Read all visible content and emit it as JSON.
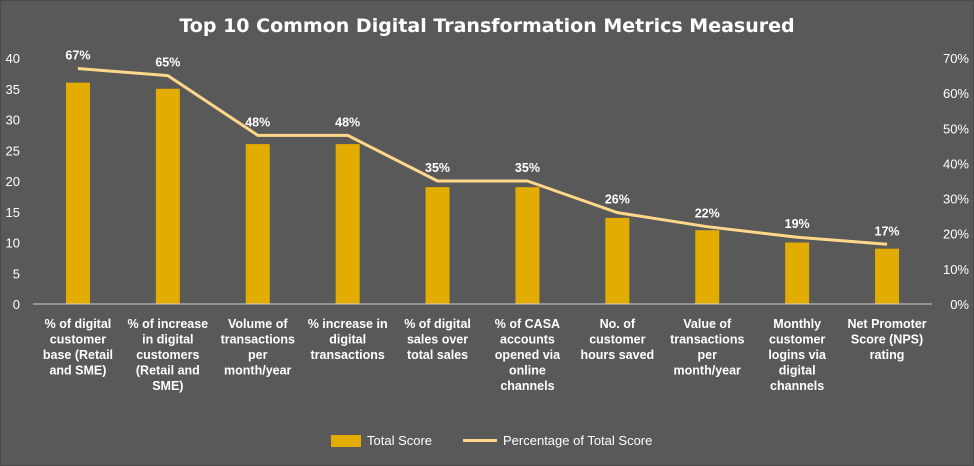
{
  "chart_data": {
    "type": "bar",
    "title": "Top 10 Common Digital Transformation Metrics Measured",
    "categories": [
      [
        "% of digital",
        "customer",
        "base (Retail",
        "and SME)"
      ],
      [
        "% of increase",
        "in digital",
        "customers",
        "(Retail and",
        "SME)"
      ],
      [
        "Volume of",
        "transactions",
        "per",
        "month/year"
      ],
      [
        "% increase in",
        "digital",
        "transactions"
      ],
      [
        "% of digital",
        "sales over",
        "total sales"
      ],
      [
        "% of CASA",
        "accounts",
        "opened via",
        "online",
        "channels"
      ],
      [
        "No. of",
        "customer",
        "hours saved"
      ],
      [
        "Value of",
        "transactions",
        "per",
        "month/year"
      ],
      [
        "Monthly",
        "customer",
        "logins via",
        "digital",
        "channels"
      ],
      [
        "Net Promoter",
        "Score (NPS)",
        "rating"
      ]
    ],
    "series": [
      {
        "name": "Total Score",
        "type": "bar",
        "axis": "left",
        "color": "#e3ac00",
        "values": [
          36,
          35,
          26,
          26,
          19,
          19,
          14,
          12,
          10,
          9
        ]
      },
      {
        "name": "Percentage of Total Score",
        "type": "line",
        "axis": "right",
        "color": "#ffd78a",
        "values": [
          67,
          65,
          48,
          48,
          35,
          35,
          26,
          22,
          19,
          17
        ],
        "labels": [
          "67%",
          "65%",
          "48%",
          "48%",
          "35%",
          "35%",
          "26%",
          "22%",
          "19%",
          "17%"
        ]
      }
    ],
    "ylim_left": [
      0,
      40
    ],
    "yticks_left": [
      "0",
      "5",
      "10",
      "15",
      "20",
      "25",
      "30",
      "35",
      "40"
    ],
    "ylim_right": [
      0,
      70
    ],
    "yticks_right": [
      "0%",
      "10%",
      "20%",
      "30%",
      "40%",
      "50%",
      "60%",
      "70%"
    ],
    "legend": {
      "position": "bottom",
      "items": [
        "Total Score",
        "Percentage of Total Score"
      ]
    },
    "grid": false
  }
}
